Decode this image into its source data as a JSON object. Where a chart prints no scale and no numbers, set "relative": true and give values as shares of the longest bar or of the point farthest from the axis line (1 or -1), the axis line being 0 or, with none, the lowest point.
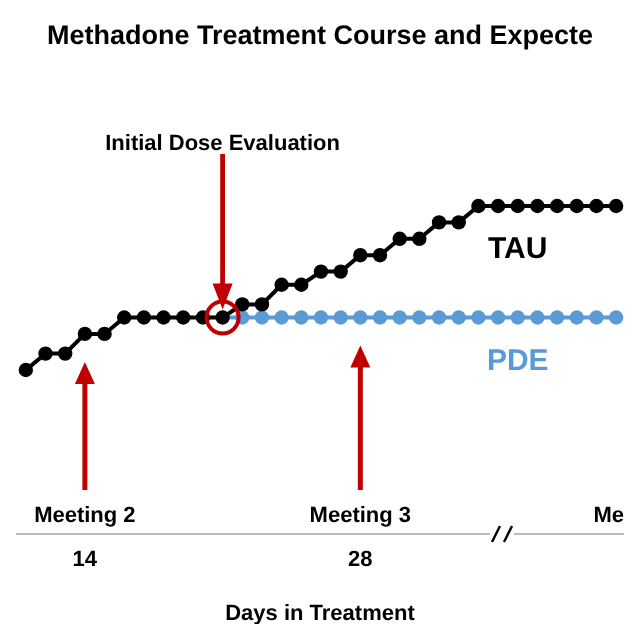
{
  "chart_data": {
    "type": "line",
    "title": "Methadone Treatment Course and Expecte",
    "xlabel": "Days in Treatment",
    "x": [
      11,
      12,
      13,
      14,
      15,
      16,
      17,
      18,
      19,
      20,
      21,
      22,
      23,
      24,
      25,
      26,
      27,
      28,
      29,
      30,
      31,
      32,
      33,
      34,
      35,
      36,
      37,
      38,
      39,
      40,
      41
    ],
    "series": [
      {
        "name": "PDE",
        "color": "#5b9bd5",
        "x": [
          21,
          22,
          23,
          24,
          25,
          26,
          27,
          28,
          29,
          30,
          31,
          32,
          33,
          34,
          35,
          36,
          37,
          38,
          39,
          40,
          41
        ],
        "values": [
          0.66,
          0.66,
          0.66,
          0.66,
          0.66,
          0.66,
          0.66,
          0.66,
          0.66,
          0.66,
          0.66,
          0.66,
          0.66,
          0.66,
          0.66,
          0.66,
          0.66,
          0.66,
          0.66,
          0.66,
          0.66
        ]
      },
      {
        "name": "TAU",
        "color": "#000000",
        "values": [
          0.5,
          0.55,
          0.55,
          0.61,
          0.61,
          0.66,
          0.66,
          0.66,
          0.66,
          0.66,
          0.66,
          0.7,
          0.7,
          0.76,
          0.76,
          0.8,
          0.8,
          0.85,
          0.85,
          0.9,
          0.9,
          0.95,
          0.95,
          1,
          1,
          1,
          1,
          1,
          1,
          1,
          1
        ]
      }
    ],
    "relative": true,
    "xlim": [
      10.5,
      41.4
    ],
    "xticks": [
      14,
      28
    ],
    "marker": "circle",
    "grid": false,
    "legend": false,
    "annotations": [
      "Initial Dose Evaluation",
      {
        "text": "Meeting 2",
        "x": 14
      },
      {
        "text": "Meeting 3",
        "x": 28
      },
      "Me"
    ]
  }
}
